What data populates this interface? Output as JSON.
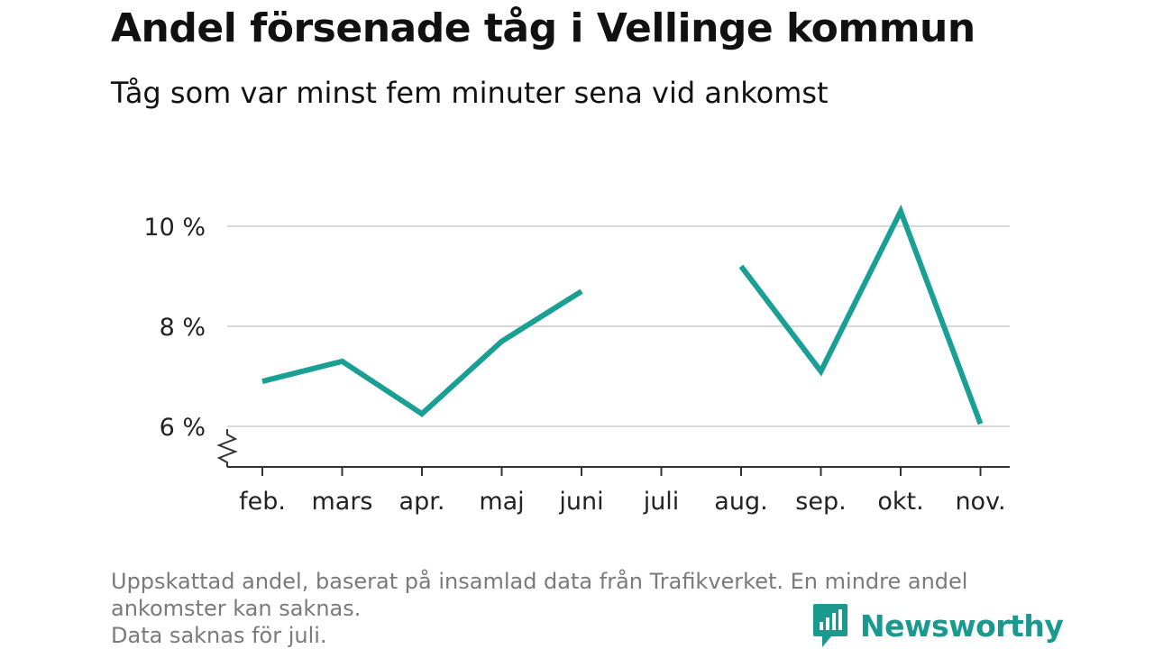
{
  "title": "Andel försenade tåg i Vellinge kommun",
  "subtitle": "Tåg som var minst fem minuter sena vid ankomst",
  "footnote": {
    "line1": "Uppskattad andel, baserat på insamlad data från Trafikverket. En mindre andel",
    "line2": "ankomster kan saknas.",
    "line3": "Data saknas för juli."
  },
  "brand": {
    "name": "Newsworthy",
    "color": "#1a9a8f",
    "icon": "newsworthy-logo-icon"
  },
  "chart_data": {
    "type": "line",
    "categories": [
      "feb.",
      "mars",
      "apr.",
      "maj",
      "juni",
      "juli",
      "aug.",
      "sep.",
      "okt.",
      "nov."
    ],
    "series": [
      {
        "values": [
          6.9,
          7.3,
          6.25,
          7.7,
          8.7,
          null,
          9.2,
          7.1,
          10.3,
          6.05
        ],
        "color": "#1a9f95"
      }
    ],
    "y_ticks": [
      6,
      8,
      10
    ],
    "y_tick_labels": [
      "6 %",
      "8 %",
      "10 %"
    ],
    "ylim": [
      5.2,
      10.4
    ],
    "grid": true,
    "axis_break": true,
    "legend": "none"
  }
}
